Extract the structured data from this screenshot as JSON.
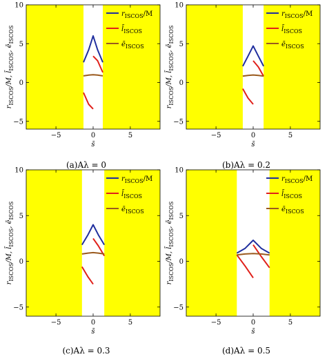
{
  "figure": {
    "captions": [
      "(a)Aλ = 0",
      "(b)Aλ = 0.2",
      "(c)Aλ = 0.3",
      "(d)Aλ = 0.5"
    ]
  },
  "chart_data": [
    {
      "type": "line",
      "panel": "a",
      "caption": "(a)Aλ = 0",
      "xlabel": "s̄",
      "ylabel": "rISCOS/M, l̄ISCOS, ēISCOS",
      "xlim": [
        -9,
        9
      ],
      "ylim": [
        -6,
        10
      ],
      "xticks": [
        -5,
        0,
        5
      ],
      "yticks": [
        -5,
        0,
        5,
        10
      ],
      "legend_position": "top-right",
      "shaded_x_ranges": [
        [
          -9,
          -1.3
        ],
        [
          1.3,
          9
        ]
      ],
      "shade_color": "#ffff00",
      "series": [
        {
          "name": "rISCOS/M",
          "color": "#1f2e9e",
          "x": [
            -1.3,
            -0.6,
            0,
            0.6,
            1.3
          ],
          "y": [
            2.6,
            4.2,
            6.0,
            4.2,
            2.6
          ]
        },
        {
          "name": "l̄ISCOS",
          "color": "#e0201a",
          "segments": [
            {
              "x": [
                -1.3,
                -0.6,
                0
              ],
              "y": [
                -1.3,
                -2.8,
                -3.4
              ]
            },
            {
              "x": [
                0,
                0.6,
                1.3
              ],
              "y": [
                3.4,
                2.8,
                1.3
              ]
            }
          ]
        },
        {
          "name": "ēISCOS",
          "color": "#9a5a1e",
          "x": [
            -1.3,
            -0.6,
            0,
            0.6,
            1.3
          ],
          "y": [
            0.85,
            0.95,
            1.0,
            0.95,
            0.85
          ]
        }
      ]
    },
    {
      "type": "line",
      "panel": "b",
      "caption": "(b)Aλ = 0.2",
      "xlabel": "s̄",
      "ylabel": "rISCOS/M, l̄ISCOS, ēISCOS",
      "xlim": [
        -9,
        9
      ],
      "ylim": [
        -6,
        10
      ],
      "xticks": [
        -5,
        0,
        5
      ],
      "yticks": [
        -5,
        0,
        5,
        10
      ],
      "legend_position": "top-right",
      "shaded_x_ranges": [
        [
          -9,
          -1.4
        ],
        [
          1.4,
          9
        ]
      ],
      "shade_color": "#ffff00",
      "series": [
        {
          "name": "rISCOS/M",
          "color": "#1f2e9e",
          "x": [
            -1.4,
            -0.7,
            0,
            0.7,
            1.4
          ],
          "y": [
            2.1,
            3.4,
            4.7,
            3.4,
            2.1
          ]
        },
        {
          "name": "l̄ISCOS",
          "color": "#e0201a",
          "segments": [
            {
              "x": [
                -1.4,
                -0.7,
                0
              ],
              "y": [
                -0.8,
                -2.0,
                -2.8
              ]
            },
            {
              "x": [
                0,
                0.7,
                1.4
              ],
              "y": [
                2.8,
                2.0,
                0.8
              ]
            }
          ]
        },
        {
          "name": "ēISCOS",
          "color": "#9a5a1e",
          "x": [
            -1.4,
            -0.7,
            0,
            0.7,
            1.4
          ],
          "y": [
            0.82,
            0.92,
            0.97,
            0.92,
            0.82
          ]
        }
      ]
    },
    {
      "type": "line",
      "panel": "c",
      "caption": "(c)Aλ = 0.3",
      "xlabel": "s̄",
      "ylabel": "rISCOS/M, l̄ISCOS, ēISCOS",
      "xlim": [
        -9,
        9
      ],
      "ylim": [
        -6,
        10
      ],
      "xticks": [
        -5,
        0,
        5
      ],
      "yticks": [
        -5,
        0,
        5,
        10
      ],
      "legend_position": "top-right",
      "shaded_x_ranges": [
        [
          -9,
          -1.5
        ],
        [
          1.5,
          9
        ]
      ],
      "shade_color": "#ffff00",
      "series": [
        {
          "name": "rISCOS/M",
          "color": "#1f2e9e",
          "x": [
            -1.5,
            -0.7,
            0,
            0.7,
            1.5
          ],
          "y": [
            1.8,
            2.9,
            4.0,
            2.9,
            1.8
          ]
        },
        {
          "name": "l̄ISCOS",
          "color": "#e0201a",
          "segments": [
            {
              "x": [
                -1.5,
                -0.7,
                0
              ],
              "y": [
                -0.6,
                -1.7,
                -2.5
              ]
            },
            {
              "x": [
                0,
                0.7,
                1.5
              ],
              "y": [
                2.5,
                1.7,
                0.6
              ]
            }
          ]
        },
        {
          "name": "ēISCOS",
          "color": "#9a5a1e",
          "x": [
            -1.5,
            -0.7,
            0,
            0.7,
            1.5
          ],
          "y": [
            0.8,
            0.9,
            0.95,
            0.9,
            0.8
          ]
        }
      ]
    },
    {
      "type": "line",
      "panel": "d",
      "caption": "(d)Aλ = 0.5",
      "xlabel": "s̄",
      "ylabel": "rISCOS/M, l̄ISCOS, ēISCOS",
      "xlim": [
        -9,
        9
      ],
      "ylim": [
        -6,
        10
      ],
      "xticks": [
        -5,
        0,
        5
      ],
      "yticks": [
        -5,
        0,
        5,
        10
      ],
      "legend_position": "top-right",
      "shaded_x_ranges": [
        [
          -9,
          -2.2
        ],
        [
          2.2,
          9
        ]
      ],
      "shade_color": "#ffff00",
      "series": [
        {
          "name": "rISCOS/M",
          "color": "#1f2e9e",
          "x": [
            -2.2,
            -1.1,
            0,
            1.1,
            2.2
          ],
          "y": [
            0.9,
            1.4,
            2.3,
            1.4,
            0.9
          ]
        },
        {
          "name": "l̄ISCOS",
          "color": "#e0201a",
          "segments": [
            {
              "x": [
                -2.2,
                -1.1,
                0
              ],
              "y": [
                0.7,
                -0.5,
                -1.8
              ]
            },
            {
              "x": [
                0,
                1.1,
                2.2
              ],
              "y": [
                1.8,
                0.5,
                -0.7
              ]
            }
          ]
        },
        {
          "name": "ēISCOS",
          "color": "#9a5a1e",
          "x": [
            -2.2,
            -1.1,
            0,
            1.1,
            2.2
          ],
          "y": [
            0.7,
            0.8,
            0.85,
            0.8,
            0.7
          ]
        }
      ]
    }
  ]
}
